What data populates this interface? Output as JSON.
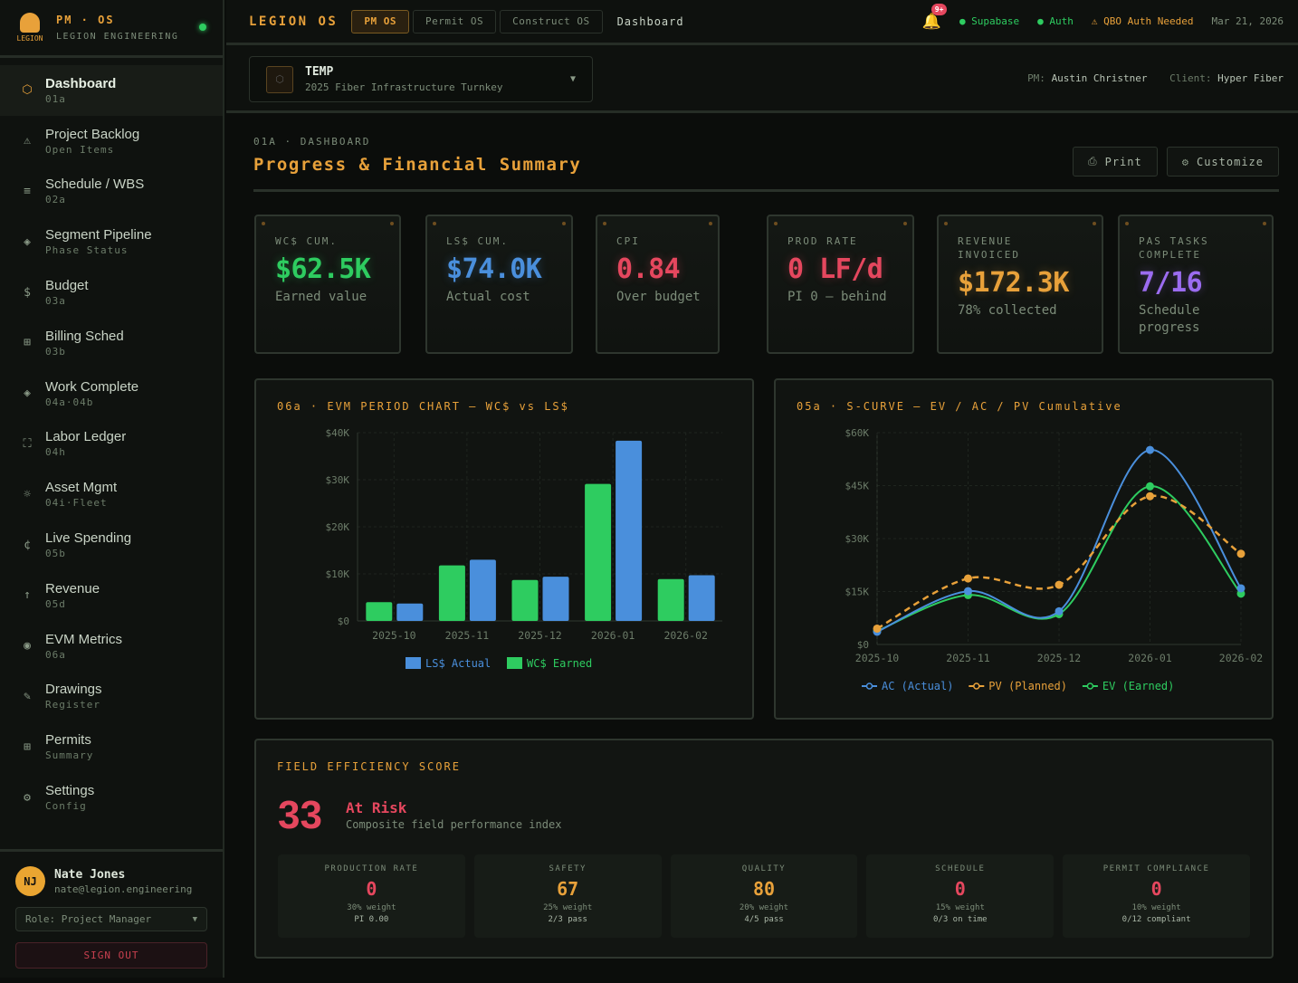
{
  "brand": {
    "title": "PM · OS",
    "subtitle": "LEGION ENGINEERING",
    "logo_text": "LEGION"
  },
  "sidebar": {
    "items": [
      {
        "label": "Dashboard",
        "sub": "01a",
        "icon": "⬡",
        "icon_name": "hexagon",
        "active": true
      },
      {
        "label": "Project Backlog",
        "sub": "Open Items",
        "icon": "⚠",
        "icon_name": "warning"
      },
      {
        "label": "Schedule / WBS",
        "sub": "02a",
        "icon": "≡",
        "icon_name": "list"
      },
      {
        "label": "Segment Pipeline",
        "sub": "Phase Status",
        "icon": "◈",
        "icon_name": "diamond"
      },
      {
        "label": "Budget",
        "sub": "03a",
        "icon": "$",
        "icon_name": "dollar"
      },
      {
        "label": "Billing Sched",
        "sub": "03b",
        "icon": "⊞",
        "icon_name": "grid"
      },
      {
        "label": "Work Complete",
        "sub": "04a·04b",
        "icon": "◈",
        "icon_name": "diamond"
      },
      {
        "label": "Labor Ledger",
        "sub": "04h",
        "icon": "⛶",
        "icon_name": "frame"
      },
      {
        "label": "Asset Mgmt",
        "sub": "04i·Fleet",
        "icon": "☼",
        "icon_name": "gear"
      },
      {
        "label": "Live Spending",
        "sub": "05b",
        "icon": "¢",
        "icon_name": "cent"
      },
      {
        "label": "Revenue",
        "sub": "05d",
        "icon": "↑",
        "icon_name": "arrow-up"
      },
      {
        "label": "EVM Metrics",
        "sub": "06a",
        "icon": "◉",
        "icon_name": "target"
      },
      {
        "label": "Drawings",
        "sub": "Register",
        "icon": "✎",
        "icon_name": "pencil"
      },
      {
        "label": "Permits",
        "sub": "Summary",
        "icon": "⊞",
        "icon_name": "grid"
      },
      {
        "label": "Settings",
        "sub": "Config",
        "icon": "⚙",
        "icon_name": "settings"
      }
    ]
  },
  "user": {
    "initials": "NJ",
    "name": "Nate Jones",
    "email": "nate@legion.engineering",
    "role": "Role: Project Manager",
    "sign_out": "SIGN OUT"
  },
  "topbar": {
    "app_title": "LEGION OS",
    "tabs": [
      "PM OS",
      "Permit OS",
      "Construct OS"
    ],
    "breadcrumb": "Dashboard",
    "notif_badge": "9+",
    "status": [
      "● Supabase",
      "● Auth",
      "⚠ QBO Auth Needed"
    ],
    "date": "Mar 21, 2026"
  },
  "project": {
    "name": "TEMP",
    "desc": "2025 Fiber Infrastructure Turnkey",
    "pm_label": "PM:",
    "pm": "Austin Christner",
    "client_label": "Client:",
    "client": "Hyper Fiber"
  },
  "page": {
    "eyebrow": "01A · DASHBOARD",
    "title": "Progress & Financial Summary",
    "print": "Print",
    "customize": "Customize"
  },
  "colors": {
    "amber": "#e8a13a",
    "green": "#2ecc60",
    "blue": "#4a8fdc",
    "red": "#e5475e",
    "purple": "#9b6cf0"
  },
  "kpis": [
    {
      "label": "WC$ CUM.",
      "value": "$62.5K",
      "sub": "Earned value",
      "color": "#2ecc60"
    },
    {
      "label": "LS$ CUM.",
      "value": "$74.0K",
      "sub": "Actual cost",
      "color": "#4a8fdc"
    },
    {
      "label": "CPI",
      "value": "0.84",
      "sub": "Over budget",
      "color": "#e5475e"
    },
    {
      "label": "PROD RATE",
      "value": "0 LF/d",
      "sub": "PI 0 — behind",
      "color": "#e5475e"
    },
    {
      "label": "REVENUE INVOICED",
      "value": "$172.3K",
      "sub": "78% collected",
      "color": "#e8a13a"
    },
    {
      "label": "PAS TASKS COMPLETE",
      "value": "7/16",
      "sub": "Schedule progress",
      "color": "#9b6cf0"
    }
  ],
  "chart_data": [
    {
      "type": "bar",
      "title": "06a · EVM PERIOD CHART — WC$ vs LS$",
      "categories": [
        "2025-10",
        "2025-11",
        "2025-12",
        "2026-01",
        "2026-02"
      ],
      "ylim": [
        0,
        40000
      ],
      "yticks": [
        "$0",
        "$10K",
        "$20K",
        "$30K",
        "$40K"
      ],
      "grid": true,
      "legend": "bottom",
      "series": [
        {
          "name": "WC$ Earned",
          "color": "#2ecc60",
          "values": [
            4000,
            11800,
            8700,
            29100,
            8900
          ]
        },
        {
          "name": "LS$ Actual",
          "color": "#4a8fdc",
          "values": [
            3700,
            13000,
            9400,
            38300,
            9700
          ]
        }
      ],
      "legend_order": [
        "LS$ Actual",
        "WC$ Earned"
      ]
    },
    {
      "type": "line",
      "title": "05a · S-CURVE — EV / AC / PV Cumulative",
      "categories": [
        "2025-10",
        "2025-11",
        "2025-12",
        "2026-01",
        "2026-02"
      ],
      "ylim": [
        0,
        60000
      ],
      "yticks": [
        "$0",
        "$15K",
        "$30K",
        "$45K",
        "$60K"
      ],
      "grid": true,
      "legend": "bottom",
      "series": [
        {
          "name": "AC (Actual)",
          "color": "#4a8fdc",
          "dashed": false,
          "values": [
            3600,
            15100,
            9400,
            55100,
            15900
          ]
        },
        {
          "name": "PV (Planned)",
          "color": "#e8a13a",
          "dashed": true,
          "values": [
            4500,
            18700,
            16900,
            42000,
            25700
          ]
        },
        {
          "name": "EV (Earned)",
          "color": "#2ecc60",
          "dashed": false,
          "values": [
            3800,
            14000,
            8600,
            44800,
            14400
          ]
        }
      ]
    }
  ],
  "field_efficiency": {
    "title": "FIELD EFFICIENCY SCORE",
    "score": "33",
    "status": "At Risk",
    "desc": "Composite field performance index",
    "metrics": [
      {
        "label": "PRODUCTION RATE",
        "value": "0",
        "weight": "30% weight",
        "detail": "PI 0.00",
        "color": "#e5475e"
      },
      {
        "label": "SAFETY",
        "value": "67",
        "weight": "25% weight",
        "detail": "2/3 pass",
        "color": "#e8a13a"
      },
      {
        "label": "QUALITY",
        "value": "80",
        "weight": "20% weight",
        "detail": "4/5 pass",
        "color": "#e8a13a"
      },
      {
        "label": "SCHEDULE",
        "value": "0",
        "weight": "15% weight",
        "detail": "0/3 on time",
        "color": "#e5475e"
      },
      {
        "label": "PERMIT COMPLIANCE",
        "value": "0",
        "weight": "10% weight",
        "detail": "0/12 compliant",
        "color": "#e5475e"
      }
    ]
  }
}
